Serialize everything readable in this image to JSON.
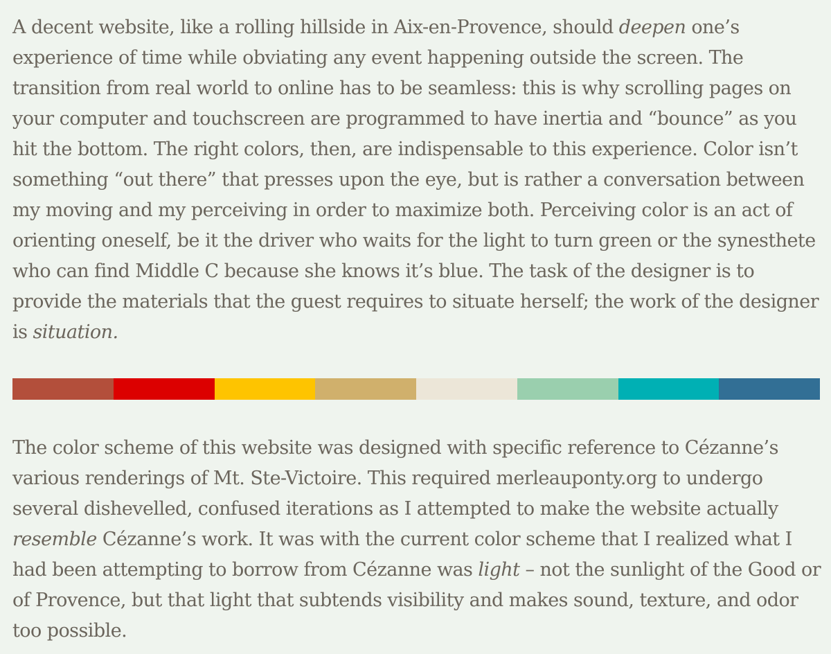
{
  "paragraph1": {
    "part1": "A decent website, like a rolling hillside in Aix-en-Provence, should ",
    "em1": "deepen",
    "part2": " one’s experience of time while obviating any event happening outside the screen. The transition from real world to online has to be seamless: this is why scrolling pages on your computer and touchscreen are programmed to have inertia and “bounce” as you hit the bottom. The right colors, then, are indispensable to this experience. Color isn’t something “out there” that presses upon the eye, but is rather a conversation between my moving and my perceiving in order to maximize both. Perceiving color is an act of orienting oneself, be it the driver who waits for the light to turn green or the synesthete who can find Middle C because she knows it’s blue. The task of the designer is to provide the materials that the guest requires to situate herself; the work of the designer is ",
    "em2": "situation."
  },
  "palette": {
    "colors": [
      "#b34f3b",
      "#dc0000",
      "#fec400",
      "#d0b06c",
      "#ece6d8",
      "#9acfae",
      "#00b0b4",
      "#326f95"
    ]
  },
  "paragraph2": {
    "part1": "The color scheme of this website was designed with specific reference to Cézanne’s various renderings of Mt. Ste-Victoire. This required merleauponty.org to undergo several dishevelled, confused iterations as I attempted to make the website actually ",
    "em1": "resemble",
    "part2": " Cézanne’s work. It was with the current color scheme that I realized what I had been attempting to borrow from Cézanne was ",
    "em2": "light",
    "part3": " – not the sunlight of the Good or of Provence, but that light that subtends visibility and makes sound, texture, and odor too possible."
  }
}
